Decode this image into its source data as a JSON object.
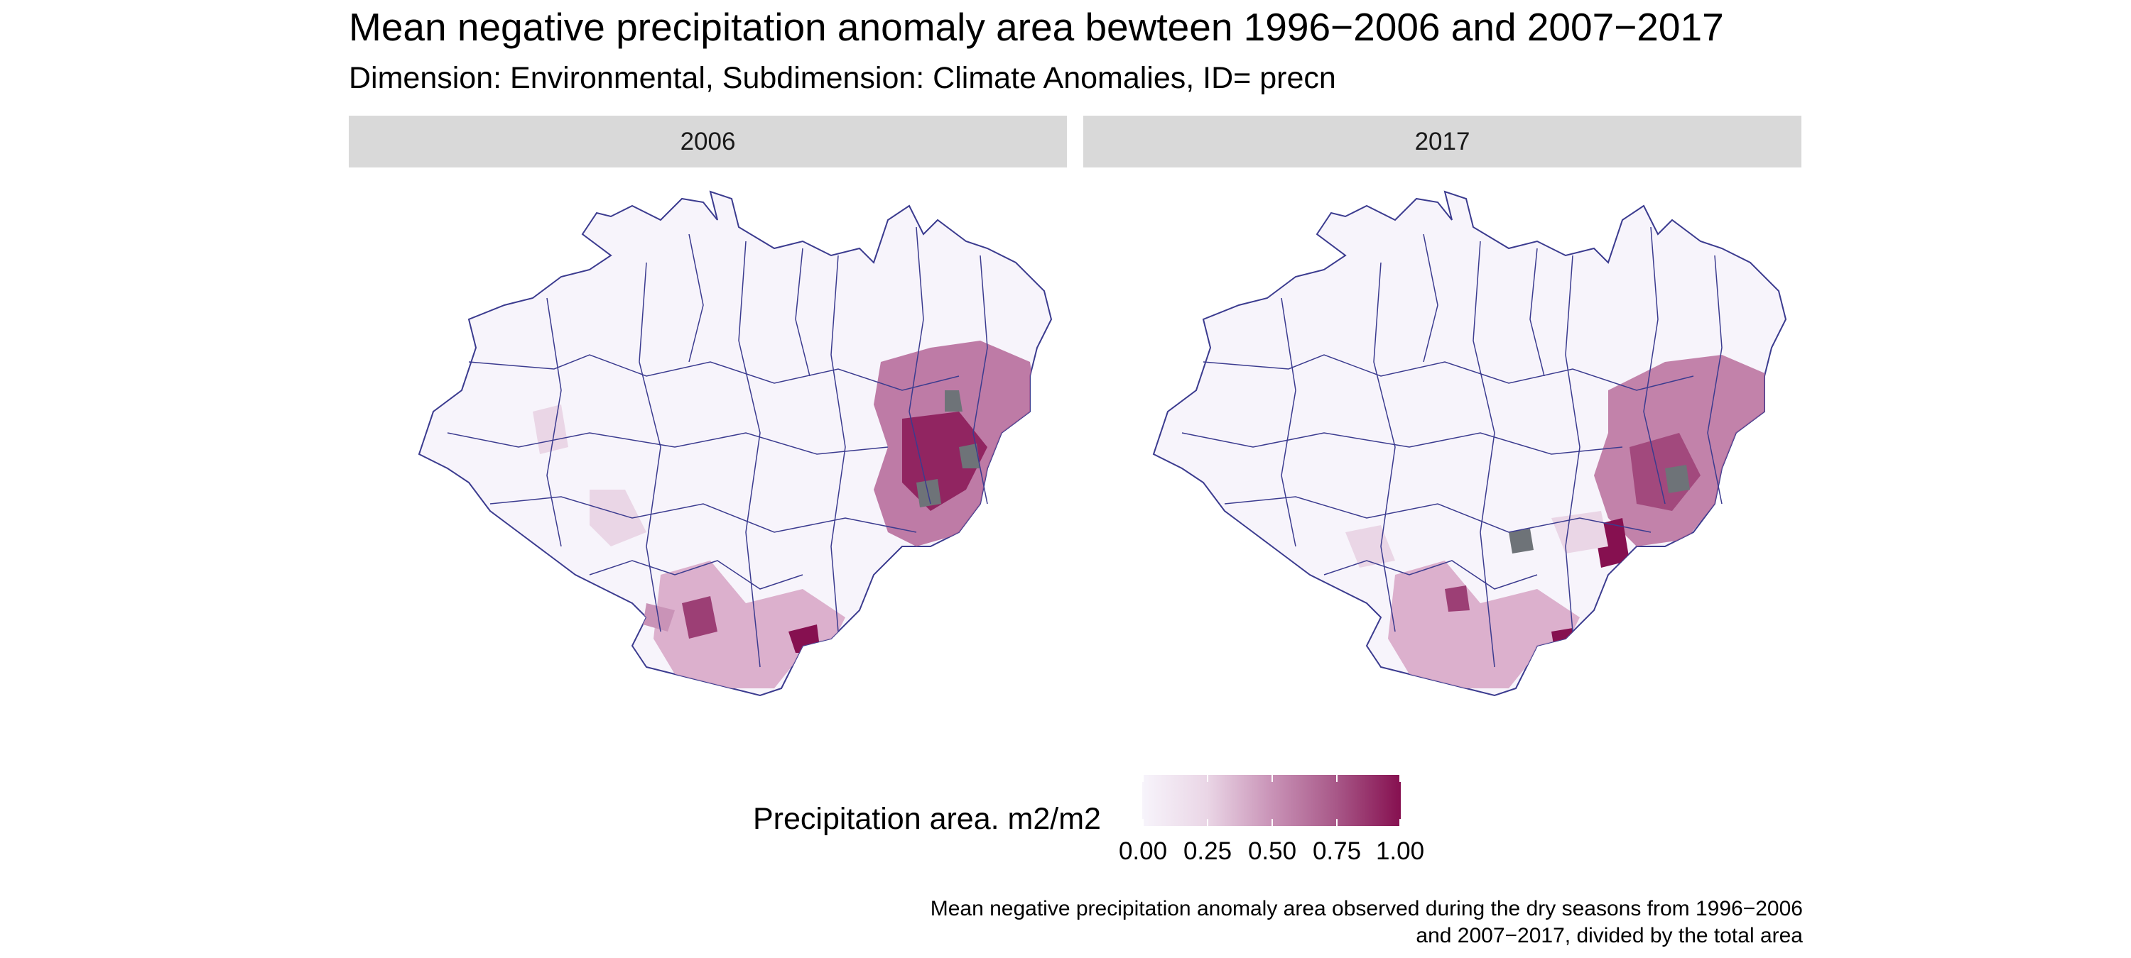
{
  "title": "Mean negative precipitation anomaly area bewteen 1996−2006 and 2007−2017",
  "subtitle": "Dimension: Environmental, Subdimension: Climate Anomalies, ID= precn",
  "panels": [
    {
      "label": "2006"
    },
    {
      "label": "2017"
    }
  ],
  "legend": {
    "title": "Precipitation area. m2/m2",
    "ticks": [
      "0.00",
      "0.25",
      "0.50",
      "0.75",
      "1.00"
    ],
    "colors": {
      "low": "#f7f4fb",
      "high": "#861050",
      "na": "#6e7378",
      "border": "#3b3b8f"
    }
  },
  "caption": {
    "line1": "Mean negative precipitation anomaly area observed during the dry seasons from 1996−2006",
    "line2": "and 2007−2017, divided by the total area"
  }
}
